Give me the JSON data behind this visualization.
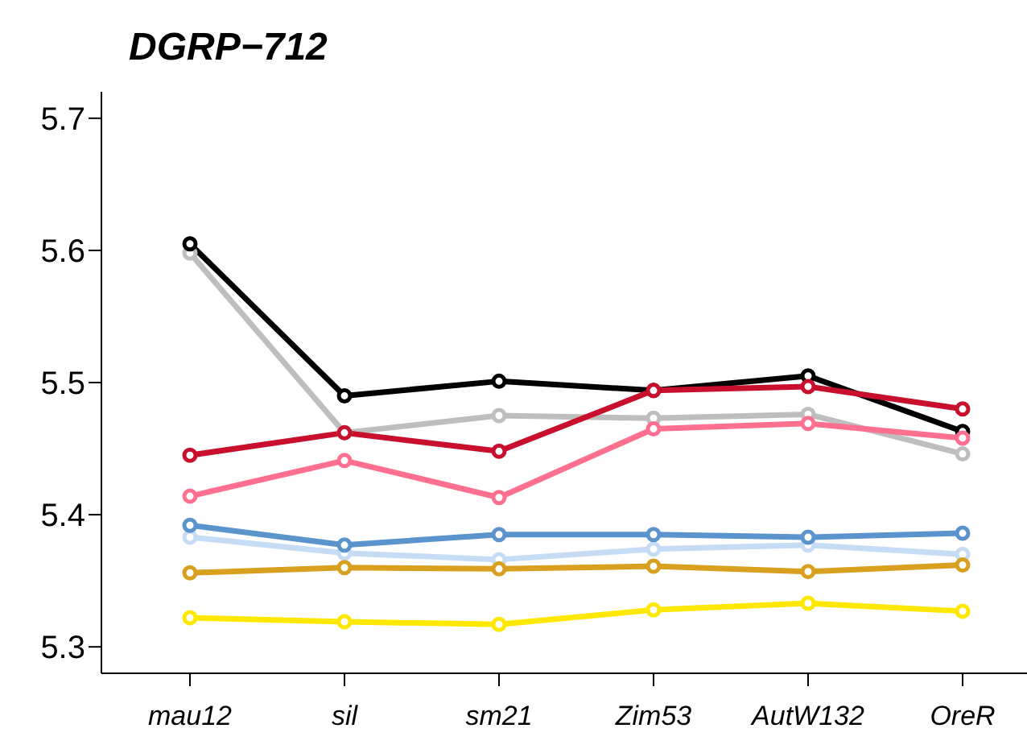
{
  "chart_data": {
    "type": "line",
    "title": "DGRP−712",
    "categories": [
      "mau12",
      "sil",
      "sm21",
      "Zim53",
      "AutW132",
      "OreR"
    ],
    "ylim": [
      5.28,
      5.72
    ],
    "yticks": [
      5.3,
      5.4,
      5.5,
      5.6,
      5.7
    ],
    "grid": false,
    "legend": false,
    "marker": "circle",
    "line_style": "solid",
    "series": [
      {
        "color": "#bebebe",
        "values": [
          5.598,
          5.462,
          5.475,
          5.473,
          5.476,
          5.446
        ]
      },
      {
        "color": "#000000",
        "values": [
          5.605,
          5.49,
          5.501,
          5.494,
          5.505,
          5.463
        ]
      },
      {
        "color": "#c8102e",
        "values": [
          5.445,
          5.462,
          5.448,
          5.494,
          5.497,
          5.48
        ]
      },
      {
        "color": "#ff7090",
        "values": [
          5.414,
          5.441,
          5.413,
          5.465,
          5.469,
          5.458
        ]
      },
      {
        "color": "#c6dcf5",
        "values": [
          5.383,
          5.371,
          5.366,
          5.374,
          5.377,
          5.37
        ]
      },
      {
        "color": "#5b93cc",
        "values": [
          5.392,
          5.377,
          5.385,
          5.385,
          5.383,
          5.386
        ]
      },
      {
        "color": "#d9a020",
        "values": [
          5.356,
          5.36,
          5.359,
          5.361,
          5.357,
          5.362
        ]
      },
      {
        "color": "#ffe800",
        "values": [
          5.322,
          5.319,
          5.317,
          5.328,
          5.333,
          5.327
        ]
      }
    ]
  }
}
